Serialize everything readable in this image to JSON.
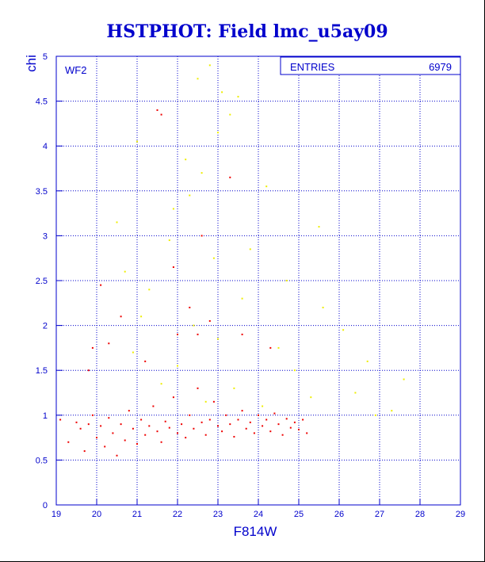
{
  "chart_data": {
    "type": "scatter",
    "title": "HSTPHOT: Field lmc_u5ay09",
    "xlabel": "F814W",
    "ylabel": "chi",
    "panel_label": "WF2",
    "stats": {
      "label": "ENTRIES",
      "value": "6979"
    },
    "xlim": [
      19,
      29
    ],
    "ylim": [
      0,
      5
    ],
    "x_ticks": [
      19,
      20,
      21,
      22,
      23,
      24,
      25,
      26,
      27,
      28,
      29
    ],
    "y_ticks": [
      0,
      0.5,
      1,
      1.5,
      2,
      2.5,
      3,
      3.5,
      4,
      4.5,
      5
    ],
    "y_tick_labels": [
      "0",
      "0.5",
      "1",
      "1.5",
      "2",
      "2.5",
      "3",
      "3.5",
      "4",
      "4.5",
      "5"
    ],
    "grid": true,
    "colors": {
      "axis": "#0000cc",
      "grid": "#0000cc",
      "series_main": "#ee0000",
      "series_outliers": "#eeee00"
    },
    "series": [
      {
        "color": "#ee0000",
        "points": [
          [
            19.1,
            0.95
          ],
          [
            19.3,
            0.7
          ],
          [
            19.5,
            0.92
          ],
          [
            19.6,
            0.85
          ],
          [
            19.7,
            0.6
          ],
          [
            19.8,
            0.9
          ],
          [
            19.9,
            1.0
          ],
          [
            20.0,
            0.75
          ],
          [
            20.1,
            0.88
          ],
          [
            20.2,
            0.65
          ],
          [
            20.3,
            0.97
          ],
          [
            20.4,
            0.8
          ],
          [
            20.5,
            0.55
          ],
          [
            20.6,
            0.9
          ],
          [
            20.7,
            0.72
          ],
          [
            20.8,
            1.05
          ],
          [
            20.9,
            0.85
          ],
          [
            21.0,
            0.68
          ],
          [
            21.1,
            0.95
          ],
          [
            21.2,
            0.78
          ],
          [
            21.3,
            0.88
          ],
          [
            21.4,
            1.1
          ],
          [
            21.5,
            0.82
          ],
          [
            21.6,
            0.7
          ],
          [
            21.7,
            0.93
          ],
          [
            21.8,
            0.86
          ],
          [
            21.9,
            1.2
          ],
          [
            22.0,
            0.8
          ],
          [
            22.1,
            0.9
          ],
          [
            22.2,
            0.75
          ],
          [
            22.3,
            1.0
          ],
          [
            22.4,
            0.85
          ],
          [
            22.5,
            1.3
          ],
          [
            22.6,
            0.92
          ],
          [
            22.7,
            0.78
          ],
          [
            22.8,
            0.95
          ],
          [
            22.9,
            1.15
          ],
          [
            23.0,
            0.88
          ],
          [
            23.1,
            0.82
          ],
          [
            23.2,
            1.0
          ],
          [
            23.3,
            0.9
          ],
          [
            23.4,
            0.76
          ],
          [
            23.5,
            0.95
          ],
          [
            23.6,
            1.05
          ],
          [
            23.7,
            0.85
          ],
          [
            23.8,
            0.92
          ],
          [
            23.9,
            0.8
          ],
          [
            24.0,
            1.0
          ],
          [
            24.1,
            0.88
          ],
          [
            24.2,
            0.95
          ],
          [
            24.3,
            0.82
          ],
          [
            24.4,
            1.02
          ],
          [
            24.5,
            0.9
          ],
          [
            24.6,
            0.78
          ],
          [
            24.7,
            0.96
          ],
          [
            24.8,
            0.86
          ],
          [
            24.9,
            0.92
          ],
          [
            25.0,
            0.84
          ],
          [
            25.1,
            0.95
          ],
          [
            25.2,
            0.8
          ],
          [
            21.5,
            4.4
          ],
          [
            21.6,
            4.35
          ],
          [
            22.6,
            3.0
          ],
          [
            20.1,
            2.45
          ],
          [
            22.3,
            2.2
          ],
          [
            23.3,
            3.65
          ],
          [
            22.8,
            2.05
          ],
          [
            21.9,
            2.65
          ],
          [
            22.0,
            1.9
          ],
          [
            20.3,
            1.8
          ],
          [
            19.9,
            1.75
          ],
          [
            22.5,
            1.9
          ],
          [
            23.6,
            1.9
          ],
          [
            24.3,
            1.75
          ],
          [
            20.6,
            2.1
          ],
          [
            19.8,
            1.5
          ],
          [
            21.2,
            1.6
          ]
        ]
      },
      {
        "color": "#eeee00",
        "points": [
          [
            22.5,
            4.75
          ],
          [
            22.8,
            4.9
          ],
          [
            23.1,
            4.6
          ],
          [
            23.5,
            4.55
          ],
          [
            23.3,
            4.35
          ],
          [
            23.0,
            4.15
          ],
          [
            21.0,
            4.05
          ],
          [
            22.2,
            3.85
          ],
          [
            22.6,
            3.7
          ],
          [
            24.2,
            3.55
          ],
          [
            22.3,
            3.45
          ],
          [
            21.9,
            3.3
          ],
          [
            20.5,
            3.15
          ],
          [
            25.5,
            3.1
          ],
          [
            21.8,
            2.95
          ],
          [
            23.8,
            2.85
          ],
          [
            22.9,
            2.75
          ],
          [
            20.7,
            2.6
          ],
          [
            24.7,
            2.5
          ],
          [
            21.3,
            2.4
          ],
          [
            23.6,
            2.3
          ],
          [
            25.6,
            2.2
          ],
          [
            21.1,
            2.1
          ],
          [
            22.4,
            2.0
          ],
          [
            26.1,
            1.95
          ],
          [
            23.0,
            1.85
          ],
          [
            24.5,
            1.75
          ],
          [
            20.9,
            1.7
          ],
          [
            26.7,
            1.6
          ],
          [
            22.0,
            1.55
          ],
          [
            24.9,
            1.5
          ],
          [
            27.6,
            1.4
          ],
          [
            21.6,
            1.35
          ],
          [
            23.4,
            1.3
          ],
          [
            26.4,
            1.25
          ],
          [
            25.3,
            1.2
          ],
          [
            22.7,
            1.15
          ],
          [
            27.3,
            1.05
          ],
          [
            24.1,
            1.1
          ],
          [
            26.9,
            1.0
          ]
        ]
      }
    ]
  }
}
